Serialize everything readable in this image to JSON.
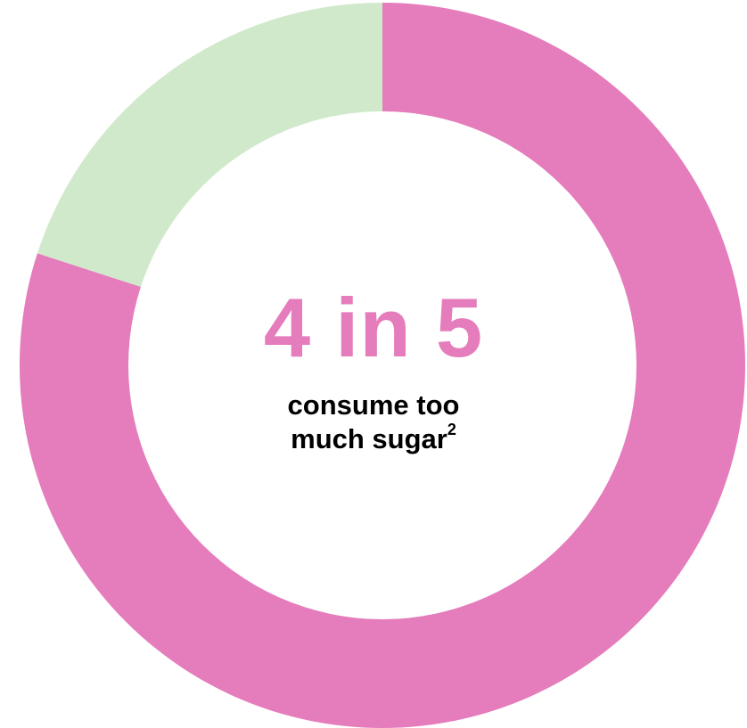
{
  "chart_data": {
    "type": "pie",
    "style": "donut",
    "slices": [
      {
        "value": 80,
        "color": "#e57cbc"
      },
      {
        "value": 20,
        "color": "#d1e9cb"
      }
    ],
    "center_text": {
      "headline": "4 in 5",
      "caption_line1": "consume too",
      "caption_line2": "much sugar",
      "footnote_marker": "2"
    },
    "colors": {
      "headline": "#e57cbc",
      "caption": "#000000"
    }
  }
}
